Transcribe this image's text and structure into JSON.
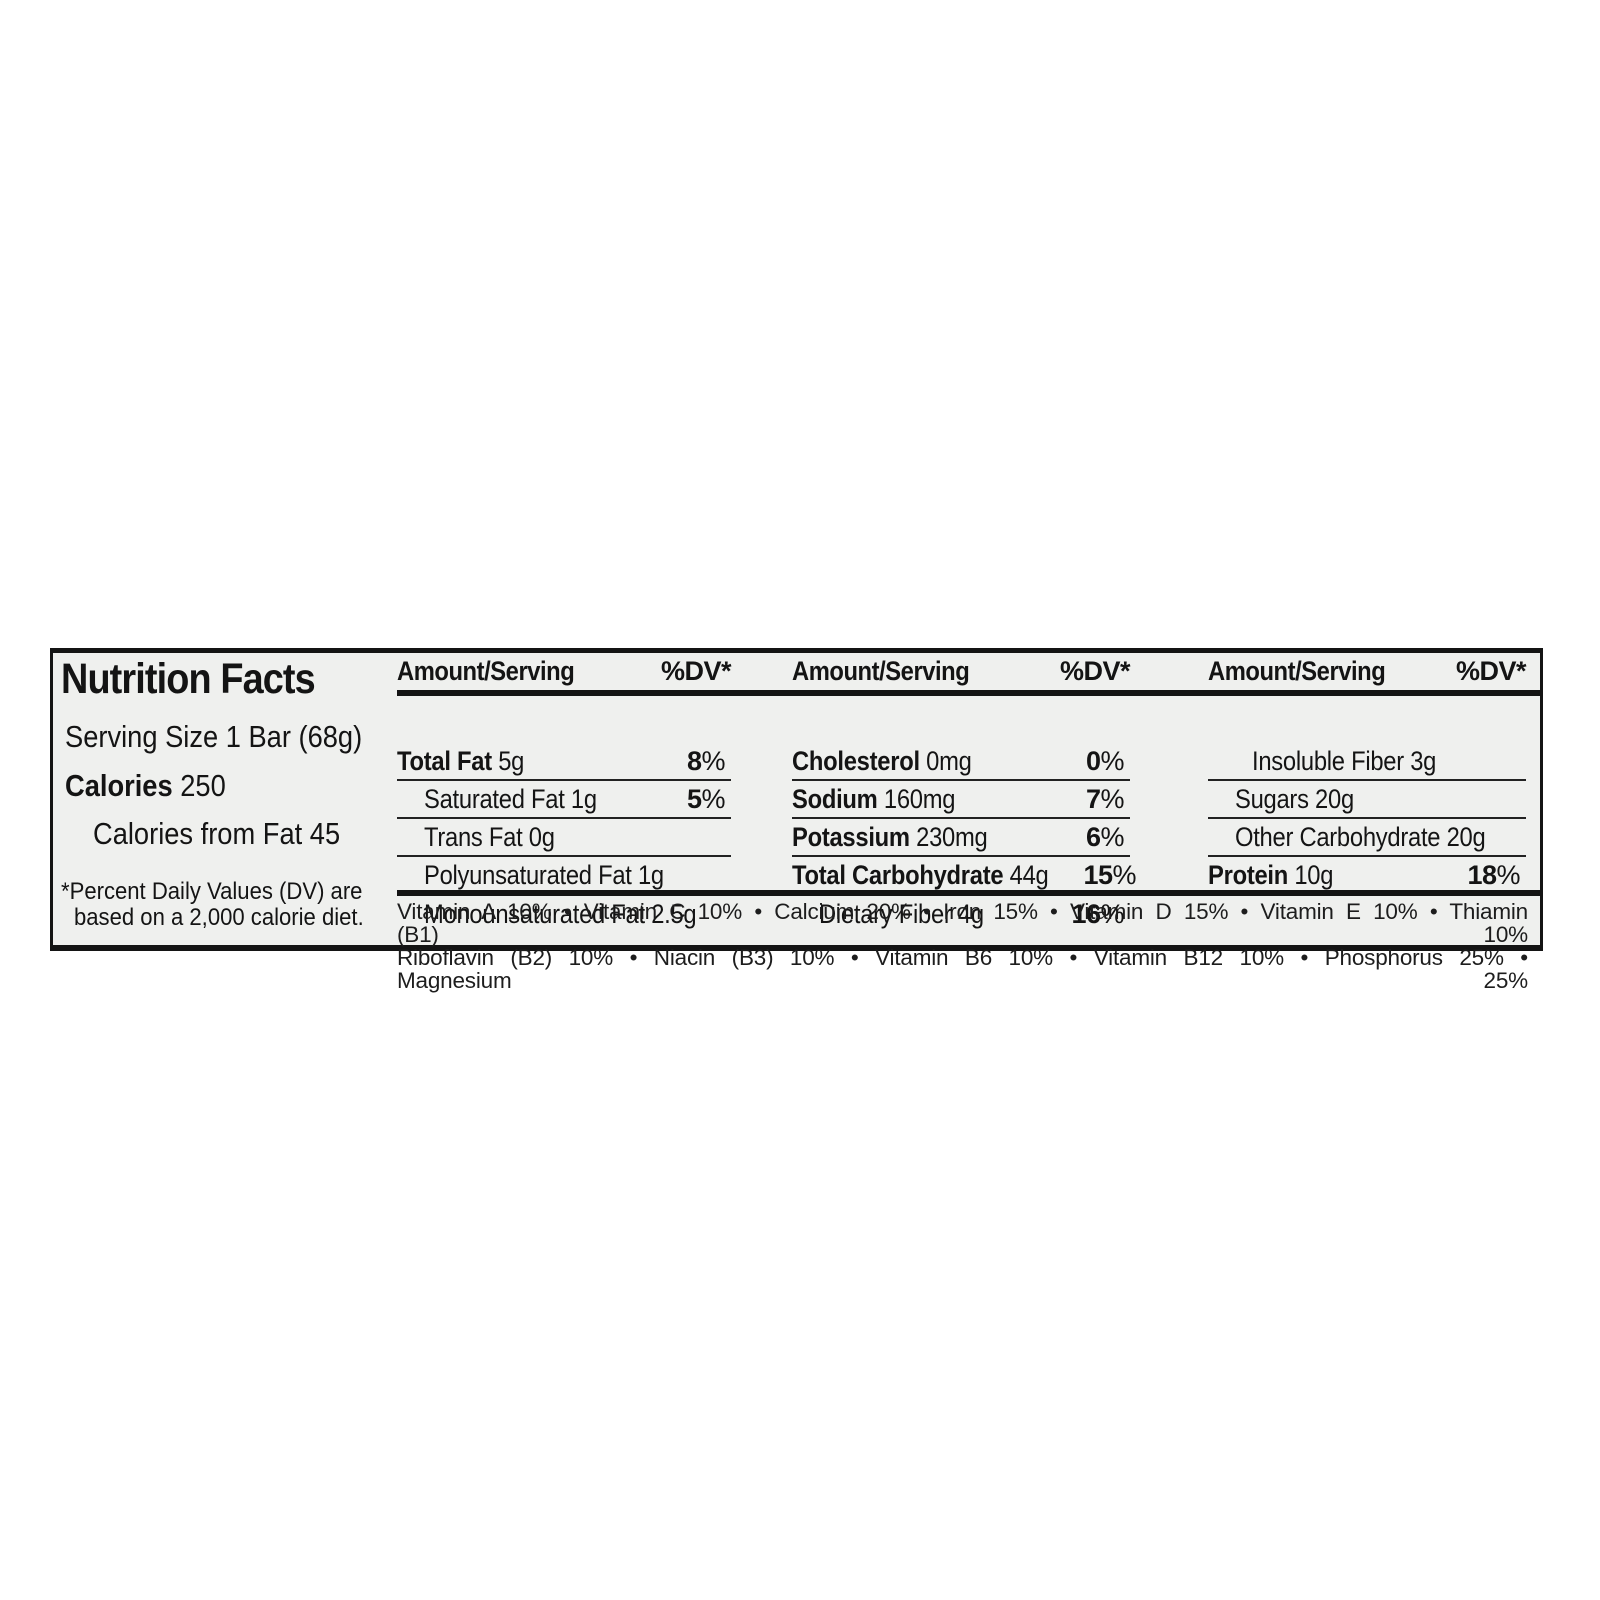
{
  "label": {
    "title": "Nutrition Facts",
    "serving_size": "Serving Size 1 Bar (68g)",
    "calories_label": "Calories",
    "calories_value": "250",
    "calories_from_fat": "Calories from Fat 45",
    "footnote_line1": "*Percent Daily Values (DV) are",
    "footnote_line2": "based on a 2,000 calorie diet.",
    "colors": {
      "label_background": "#eff0ee",
      "ink": "#141414",
      "page_background": "#ffffff"
    },
    "columns": [
      {
        "header_amount": "Amount/Serving",
        "header_dv": "%DV*",
        "rows": [
          {
            "name": "Total Fat",
            "value": "5g",
            "dv": "8%",
            "bold": true,
            "indent": 0
          },
          {
            "name": "Saturated Fat",
            "value": "1g",
            "dv": "5%",
            "bold": false,
            "indent": 1
          },
          {
            "name": "Trans Fat",
            "value": "0g",
            "dv": "",
            "bold": false,
            "indent": 1
          },
          {
            "name": "Polyunsaturated Fat",
            "value": "1g",
            "dv": "",
            "bold": false,
            "indent": 1
          },
          {
            "name": "Monounsaturated Fat",
            "value": "2.5g",
            "dv": "",
            "bold": false,
            "indent": 1
          }
        ]
      },
      {
        "header_amount": "Amount/Serving",
        "header_dv": "%DV*",
        "rows": [
          {
            "name": "Cholesterol",
            "value": "0mg",
            "dv": "0%",
            "bold": true,
            "indent": 0
          },
          {
            "name": "Sodium",
            "value": "160mg",
            "dv": "7%",
            "bold": true,
            "indent": 0
          },
          {
            "name": "Potassium",
            "value": "230mg",
            "dv": "6%",
            "bold": true,
            "indent": 0
          },
          {
            "name": "Total Carbohydrate",
            "value": "44g",
            "dv": "15%",
            "bold": true,
            "indent": 0
          },
          {
            "name": "Dietary Fiber",
            "value": "4g",
            "dv": "16%",
            "bold": false,
            "indent": 1
          }
        ]
      },
      {
        "header_amount": "Amount/Serving",
        "header_dv": "%DV*",
        "rows": [
          {
            "name": "Insoluble Fiber",
            "value": "3g",
            "dv": "",
            "bold": false,
            "indent": 2
          },
          {
            "name": "Sugars",
            "value": "20g",
            "dv": "",
            "bold": false,
            "indent": 1
          },
          {
            "name": "Other Carbohydrate",
            "value": "20g",
            "dv": "",
            "bold": false,
            "indent": 1
          },
          {
            "name": "Protein",
            "value": "10g",
            "dv": "18%",
            "bold": true,
            "indent": 0
          },
          {
            "name": "",
            "value": "",
            "dv": "",
            "bold": false,
            "indent": 0,
            "empty": true
          }
        ]
      }
    ],
    "vitamins_line1": "Vitamin A 10% • Vitamin C 10% • Calcium 20% • Iron 15% • Vitamin D 15% • Vitamin E 10% • Thiamin (B1) 10%",
    "vitamins_line2": "Riboflavin (B2) 10% • Niacin (B3) 10% • Vitamin B6 10% • Vitamin B12 10% • Phosphorus 25% • Magnesium 25%"
  }
}
